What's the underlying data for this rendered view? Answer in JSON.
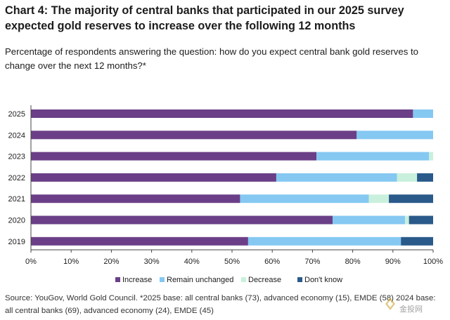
{
  "title": "Chart 4: The majority of central banks that participated in our 2025 survey expected gold reserves to increase over the following 12 months",
  "subtitle": "Percentage of respondents answering the question: how do you expect central bank gold reserves to change over the next 12 months?*",
  "source": "Source: YouGov, World Gold Council. *2025 base: all central banks (73), advanced economy (15), EMDE (58) 2024 base: all central banks (69), advanced economy (24), EMDE (45)",
  "watermark": "金投网",
  "chart_data": {
    "type": "bar",
    "orientation": "horizontal",
    "stacked": true,
    "categories": [
      "2025",
      "2024",
      "2023",
      "2022",
      "2021",
      "2020",
      "2019"
    ],
    "series": [
      {
        "name": "Increase",
        "color": "#6b3f87",
        "values": [
          95,
          81,
          71,
          61,
          52,
          75,
          54
        ]
      },
      {
        "name": "Remain unchanged",
        "color": "#85c8f2",
        "values": [
          5,
          19,
          28,
          30,
          32,
          18,
          38
        ]
      },
      {
        "name": "Decrease",
        "color": "#c9f0dc",
        "values": [
          0,
          0,
          1,
          5,
          5,
          1,
          0
        ]
      },
      {
        "name": "Don't know",
        "color": "#2a5a8a",
        "values": [
          0,
          0,
          0,
          4,
          11,
          6,
          8
        ]
      }
    ],
    "xlim": [
      0,
      100
    ],
    "xticks": [
      "0%",
      "10%",
      "20%",
      "30%",
      "40%",
      "50%",
      "60%",
      "70%",
      "80%",
      "90%",
      "100%"
    ],
    "grid": false,
    "legend": "bottom"
  }
}
